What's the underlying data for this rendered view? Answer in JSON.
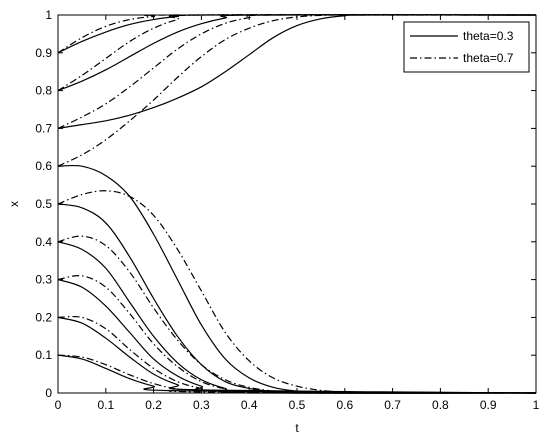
{
  "chart_data": {
    "type": "line",
    "xlabel": "t",
    "ylabel": "x",
    "xlim": [
      0,
      1
    ],
    "ylim": [
      0,
      1
    ],
    "xticks": [
      "0",
      "0.1",
      "0.2",
      "0.3",
      "0.4",
      "0.5",
      "0.6",
      "0.7",
      "0.8",
      "0.9",
      "1"
    ],
    "yticks": [
      "0",
      "0.1",
      "0.2",
      "0.3",
      "0.4",
      "0.5",
      "0.6",
      "0.7",
      "0.8",
      "0.9",
      "1"
    ],
    "grid": false,
    "legend_position": "top-right",
    "legend": [
      "theta=0.3",
      "theta=0.7"
    ],
    "series": [
      {
        "name": "theta=0.3",
        "initial": 0.9,
        "x": [
          0,
          0.05,
          0.1,
          0.15,
          0.2,
          0.25,
          0.3,
          1
        ],
        "y": [
          0.9,
          0.93,
          0.955,
          0.975,
          0.988,
          0.996,
          1.0,
          1.0
        ]
      },
      {
        "name": "theta=0.3",
        "initial": 0.8,
        "x": [
          0,
          0.05,
          0.1,
          0.15,
          0.2,
          0.25,
          0.3,
          0.35,
          0.4,
          1
        ],
        "y": [
          0.8,
          0.825,
          0.855,
          0.89,
          0.925,
          0.955,
          0.977,
          0.992,
          1.0,
          1.0
        ]
      },
      {
        "name": "theta=0.3",
        "initial": 0.7,
        "x": [
          0,
          0.05,
          0.1,
          0.15,
          0.2,
          0.25,
          0.3,
          0.35,
          0.4,
          0.45,
          0.5,
          0.55,
          0.6,
          0.65,
          1
        ],
        "y": [
          0.7,
          0.71,
          0.72,
          0.735,
          0.755,
          0.78,
          0.81,
          0.85,
          0.895,
          0.94,
          0.972,
          0.99,
          0.998,
          1.0,
          1.0
        ]
      },
      {
        "name": "theta=0.3",
        "initial": 0.6,
        "x": [
          0,
          0.05,
          0.1,
          0.15,
          0.2,
          0.25,
          0.3,
          0.35,
          0.4,
          0.45,
          0.5,
          0.55,
          0.6,
          1
        ],
        "y": [
          0.6,
          0.6,
          0.575,
          0.52,
          0.42,
          0.3,
          0.18,
          0.09,
          0.04,
          0.015,
          0.005,
          0.001,
          0.0,
          0.0
        ]
      },
      {
        "name": "theta=0.3",
        "initial": 0.5,
        "x": [
          0,
          0.05,
          0.1,
          0.15,
          0.2,
          0.25,
          0.3,
          0.35,
          0.4,
          0.45,
          0.5,
          1
        ],
        "y": [
          0.5,
          0.49,
          0.45,
          0.36,
          0.25,
          0.15,
          0.075,
          0.03,
          0.012,
          0.004,
          0.0,
          0.0
        ]
      },
      {
        "name": "theta=0.3",
        "initial": 0.4,
        "x": [
          0,
          0.05,
          0.1,
          0.15,
          0.2,
          0.25,
          0.3,
          0.35,
          0.4,
          1
        ],
        "y": [
          0.4,
          0.38,
          0.33,
          0.24,
          0.15,
          0.08,
          0.035,
          0.012,
          0.0,
          0.0
        ]
      },
      {
        "name": "theta=0.3",
        "initial": 0.3,
        "x": [
          0,
          0.05,
          0.1,
          0.15,
          0.2,
          0.25,
          0.3,
          0.35,
          1
        ],
        "y": [
          0.3,
          0.28,
          0.23,
          0.16,
          0.09,
          0.045,
          0.018,
          0.005,
          0.0
        ]
      },
      {
        "name": "theta=0.3",
        "initial": 0.2,
        "x": [
          0,
          0.05,
          0.1,
          0.15,
          0.2,
          0.25,
          0.3,
          1
        ],
        "y": [
          0.2,
          0.185,
          0.145,
          0.095,
          0.05,
          0.022,
          0.008,
          0.0
        ]
      },
      {
        "name": "theta=0.3",
        "initial": 0.1,
        "x": [
          0,
          0.05,
          0.1,
          0.15,
          0.2,
          0.25,
          1
        ],
        "y": [
          0.1,
          0.09,
          0.065,
          0.038,
          0.018,
          0.006,
          0.0
        ]
      },
      {
        "name": "theta=0.7",
        "initial": 0.9,
        "x": [
          0,
          0.05,
          0.1,
          0.15,
          0.2,
          0.25,
          1
        ],
        "y": [
          0.9,
          0.94,
          0.97,
          0.988,
          0.996,
          1.0,
          1.0
        ]
      },
      {
        "name": "theta=0.7",
        "initial": 0.8,
        "x": [
          0,
          0.05,
          0.1,
          0.15,
          0.2,
          0.25,
          0.3,
          1
        ],
        "y": [
          0.8,
          0.84,
          0.885,
          0.93,
          0.965,
          0.988,
          1.0,
          1.0
        ]
      },
      {
        "name": "theta=0.7",
        "initial": 0.7,
        "x": [
          0,
          0.05,
          0.1,
          0.15,
          0.2,
          0.25,
          0.3,
          0.35,
          0.4,
          0.45,
          1
        ],
        "y": [
          0.7,
          0.73,
          0.765,
          0.81,
          0.86,
          0.91,
          0.95,
          0.978,
          0.993,
          1.0,
          1.0
        ]
      },
      {
        "name": "theta=0.7",
        "initial": 0.6,
        "x": [
          0,
          0.05,
          0.1,
          0.15,
          0.2,
          0.25,
          0.3,
          0.35,
          0.4,
          0.45,
          0.5,
          0.55,
          0.6,
          0.65,
          0.7,
          1
        ],
        "y": [
          0.6,
          0.63,
          0.67,
          0.72,
          0.775,
          0.835,
          0.89,
          0.935,
          0.965,
          0.985,
          0.995,
          0.999,
          1.0,
          1.0,
          1.0,
          1.0
        ]
      },
      {
        "name": "theta=0.7",
        "initial": 0.5,
        "x": [
          0,
          0.05,
          0.1,
          0.15,
          0.2,
          0.25,
          0.3,
          0.35,
          0.4,
          0.45,
          0.5,
          0.55,
          0.6,
          0.65,
          1
        ],
        "y": [
          0.5,
          0.525,
          0.535,
          0.52,
          0.47,
          0.38,
          0.27,
          0.16,
          0.085,
          0.04,
          0.018,
          0.007,
          0.002,
          0.0,
          0.0
        ]
      },
      {
        "name": "theta=0.7",
        "initial": 0.4,
        "x": [
          0,
          0.05,
          0.1,
          0.15,
          0.2,
          0.25,
          0.3,
          0.35,
          0.4,
          0.45,
          0.5,
          1
        ],
        "y": [
          0.4,
          0.415,
          0.39,
          0.32,
          0.225,
          0.14,
          0.075,
          0.035,
          0.015,
          0.005,
          0.0,
          0.0
        ]
      },
      {
        "name": "theta=0.7",
        "initial": 0.3,
        "x": [
          0,
          0.05,
          0.1,
          0.15,
          0.2,
          0.25,
          0.3,
          0.35,
          0.4,
          1
        ],
        "y": [
          0.3,
          0.31,
          0.28,
          0.21,
          0.13,
          0.07,
          0.03,
          0.011,
          0.003,
          0.0
        ]
      },
      {
        "name": "theta=0.7",
        "initial": 0.2,
        "x": [
          0,
          0.05,
          0.1,
          0.15,
          0.2,
          0.25,
          0.3,
          0.35,
          1
        ],
        "y": [
          0.2,
          0.2,
          0.17,
          0.115,
          0.065,
          0.03,
          0.012,
          0.004,
          0.0
        ]
      },
      {
        "name": "theta=0.7",
        "initial": 0.1,
        "x": [
          0,
          0.05,
          0.1,
          0.15,
          0.2,
          0.25,
          0.3,
          1
        ],
        "y": [
          0.1,
          0.095,
          0.075,
          0.048,
          0.025,
          0.01,
          0.003,
          0.0
        ]
      }
    ]
  }
}
